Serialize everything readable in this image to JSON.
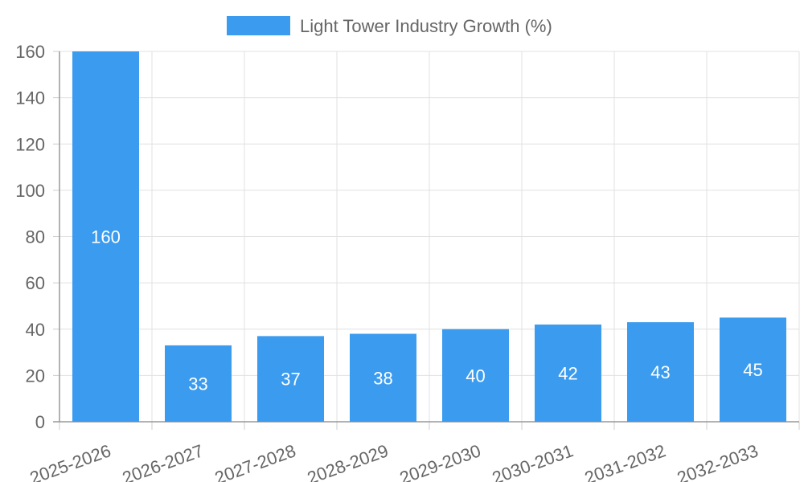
{
  "chart_data": {
    "type": "bar",
    "categories": [
      "2025-2026",
      "2026-2027",
      "2027-2028",
      "2028-2029",
      "2029-2030",
      "2030-2031",
      "2031-2032",
      "2032-2033"
    ],
    "series": [
      {
        "name": "Light Tower Industry Growth (%)",
        "values": [
          160,
          33,
          37,
          38,
          40,
          42,
          43,
          45
        ],
        "color": "#3a9bef"
      }
    ],
    "ylim": [
      0,
      160
    ],
    "yticks": [
      0,
      20,
      40,
      60,
      80,
      100,
      120,
      140,
      160
    ],
    "grid": true,
    "legend_position": "top-center",
    "data_labels": true,
    "xlabel_rotation_degrees": -20
  }
}
